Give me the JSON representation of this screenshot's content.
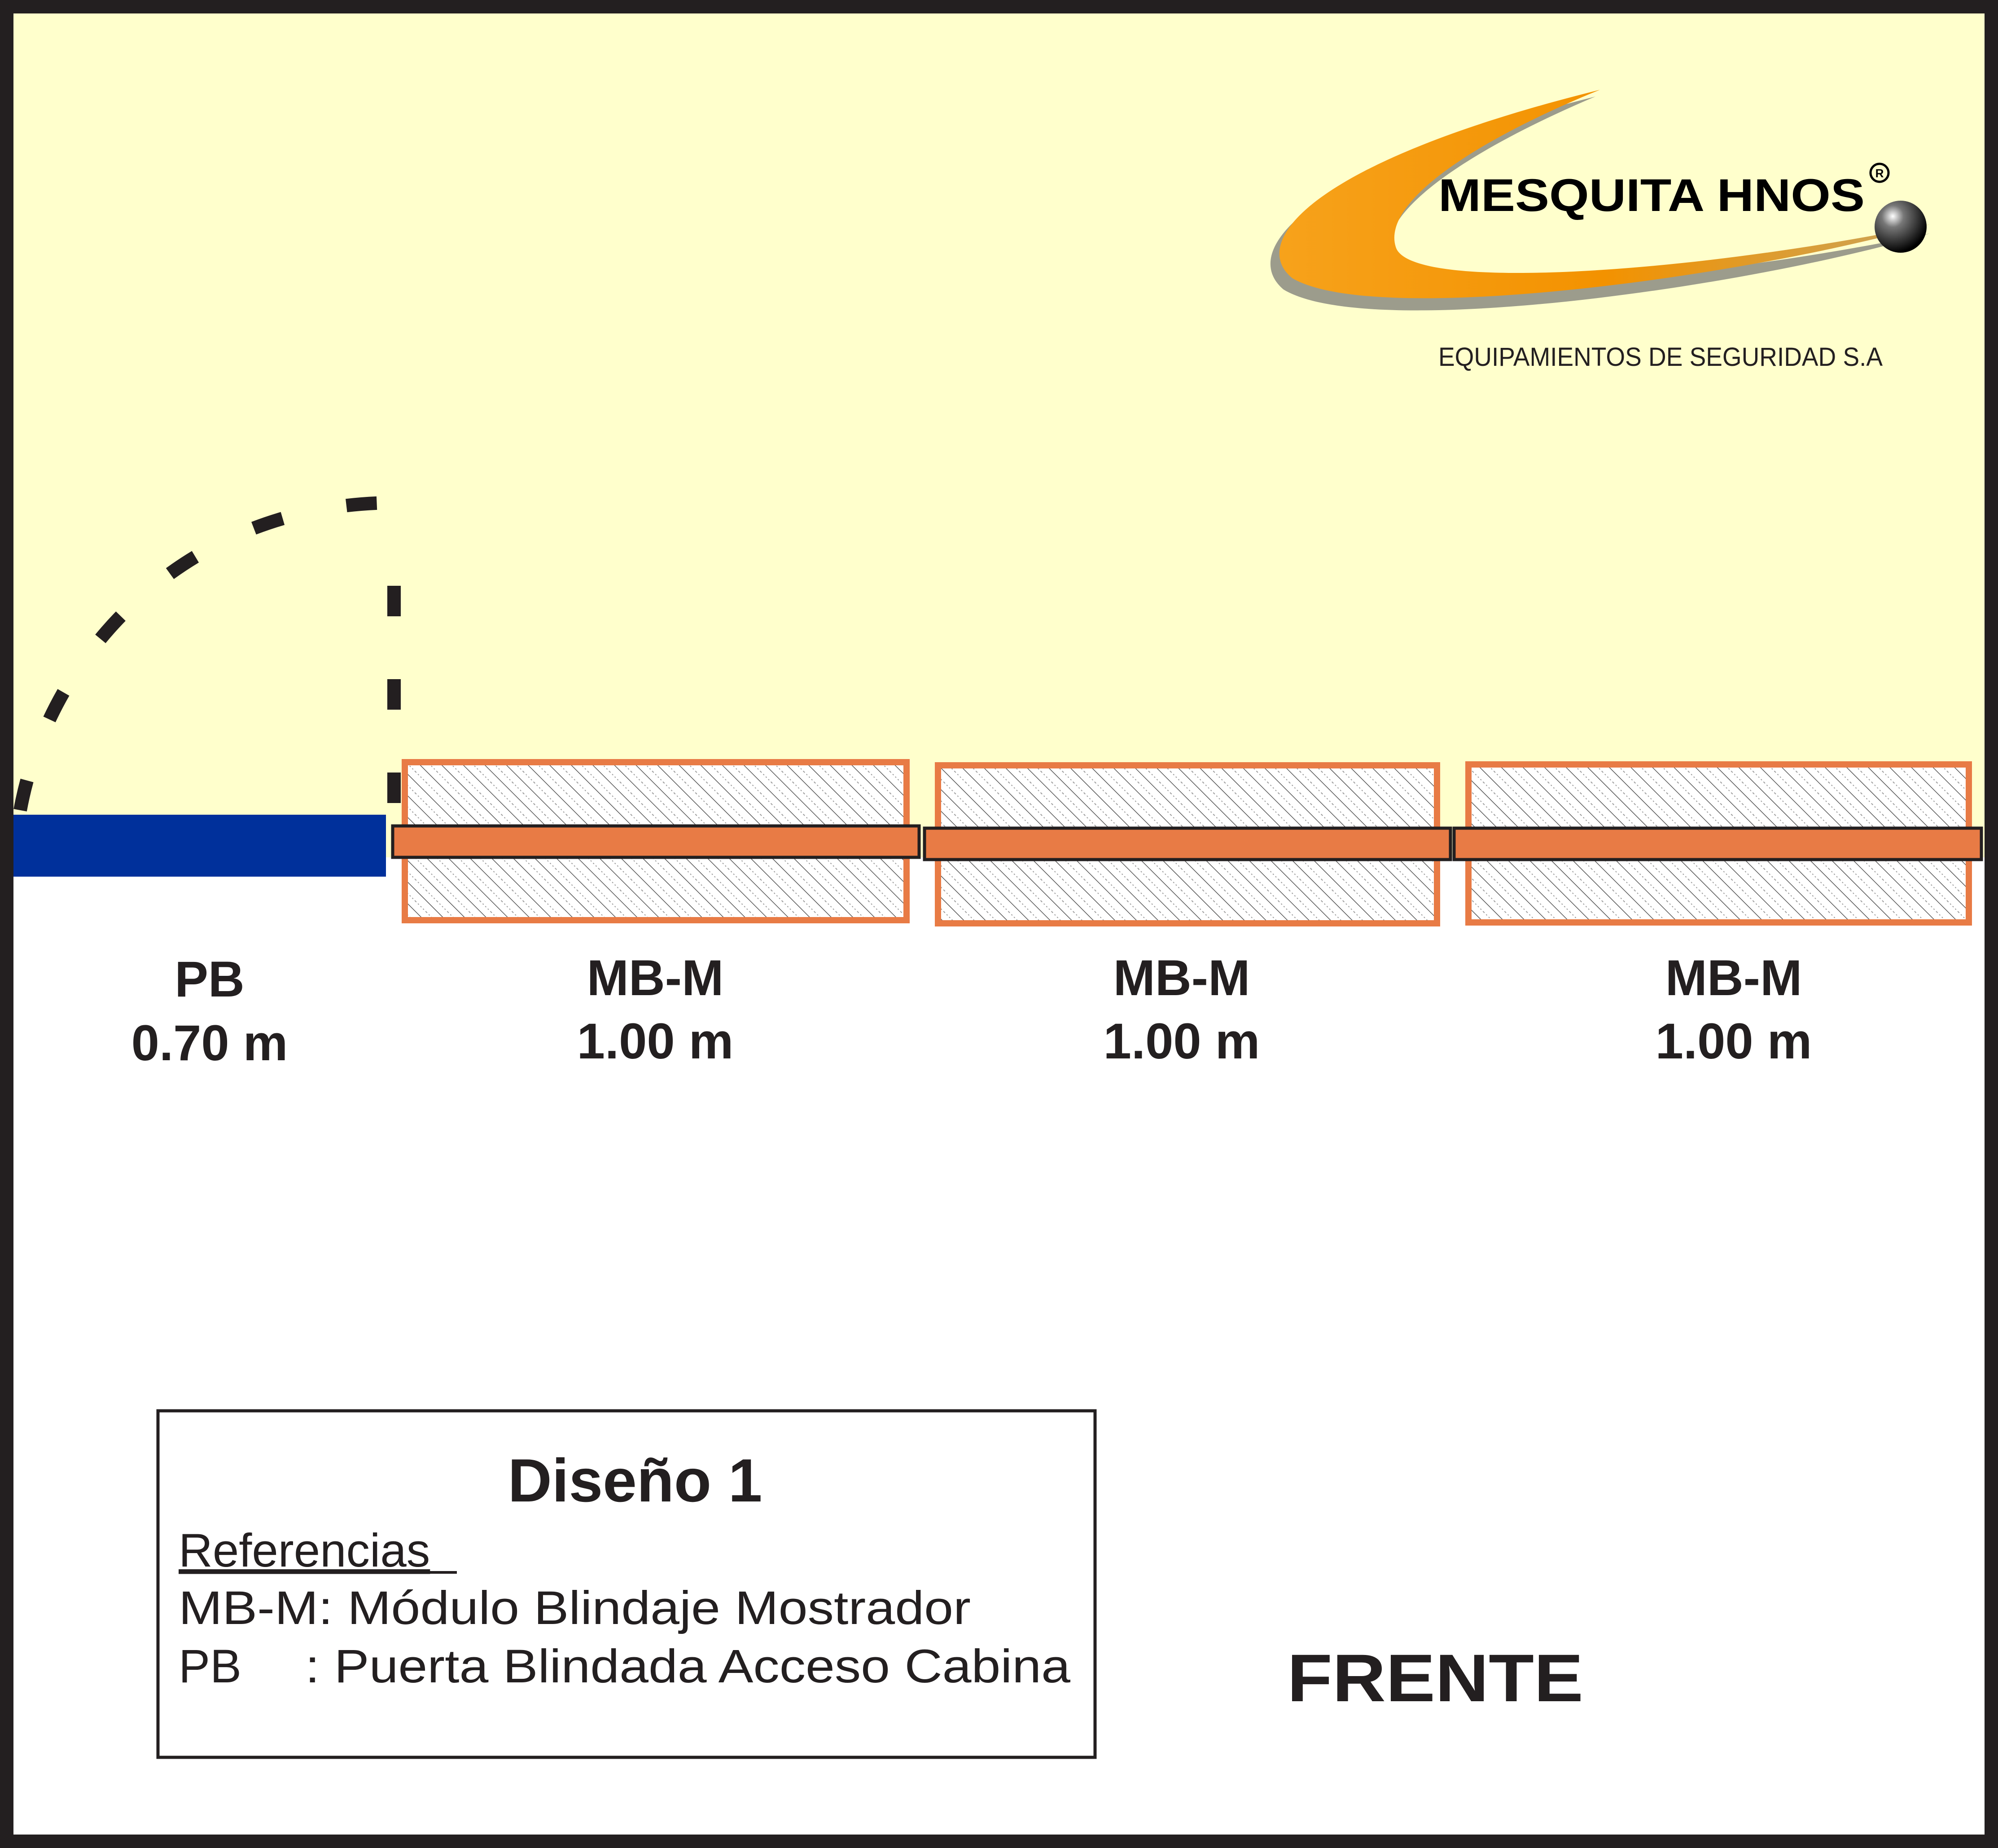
{
  "logo": {
    "brand": "MESQUITA HNOS",
    "registered": "R",
    "tagline": "EQUIPAMIENTOS DE SEGURIDAD S.A"
  },
  "modules": [
    {
      "code": "PB",
      "width": "0.70 m"
    },
    {
      "code": "MB-M",
      "width": "1.00 m"
    },
    {
      "code": "MB-M",
      "width": "1.00 m"
    },
    {
      "code": "MB-M",
      "width": "1.00 m"
    }
  ],
  "legend": {
    "title": "Diseño 1",
    "heading": "Referencias",
    "line1": "MB-M: Módulo Blindaje Mostrador",
    "line2_code": "PB",
    "line2_text": ": Puerta Blindada Acceso Cabina"
  },
  "front_label": "FRENTE",
  "colors": {
    "background_zone": "#ffffcc",
    "border": "#231f20",
    "door_panel": "#00309b",
    "module_orange": "#e87b45",
    "logo_orange": "#f39200",
    "text": "#231f20"
  }
}
